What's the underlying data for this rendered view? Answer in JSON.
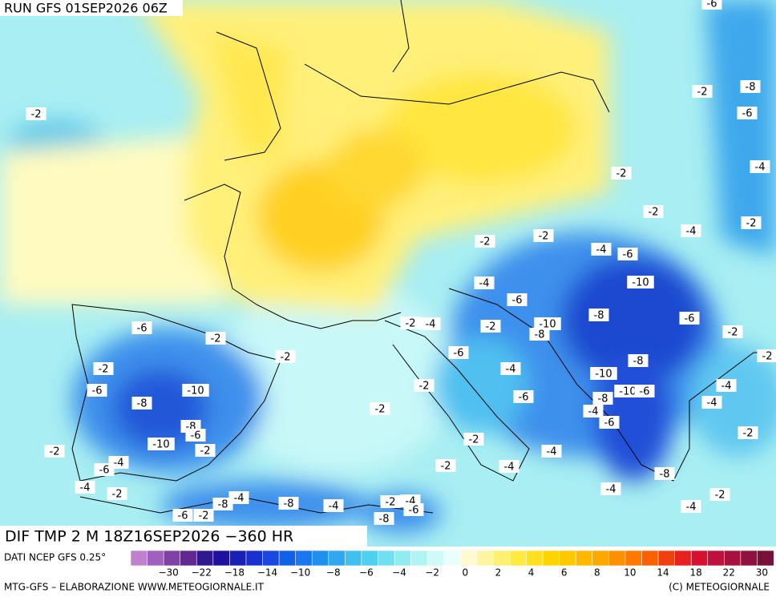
{
  "header": {
    "run": "RUN GFS 01SEP2026 06Z"
  },
  "map": {
    "labels": [
      "-2",
      "-2",
      "-8",
      "-6",
      "-4",
      "-2",
      "-2",
      "-2",
      "-4",
      "-2",
      "-2",
      "-4",
      "-6",
      "-10",
      "-4",
      "-6",
      "-6",
      "-2",
      "-2",
      "-4",
      "-2",
      "-10",
      "-8",
      "-8",
      "-6",
      "-2",
      "-2",
      "-6",
      "-2",
      "-2",
      "-4",
      "-10",
      "-8",
      "-6",
      "-10",
      "-2",
      "-4",
      "-6",
      "-8",
      "-10",
      "-6",
      "-8",
      "-4",
      "-2",
      "-4",
      "-6",
      "-8",
      "-6",
      "-2",
      "-10",
      "-2",
      "-2",
      "-2",
      "-4",
      "-4",
      "-6",
      "-2",
      "-4",
      "-8",
      "-4",
      "-2",
      "-4",
      "-4",
      "-8",
      "-8",
      "-4",
      "-2",
      "-4",
      "-6",
      "-6",
      "-2",
      "-2",
      "-4",
      "-8",
      "-6"
    ]
  },
  "footer": {
    "field": "DIF TMP 2 M 18Z16SEP2026 −360 HR",
    "source": "DATI NCEP GFS 0.25°",
    "credit": "MTG-GFS – ELABORAZIONE WWW.METEOGIORNALE.IT",
    "copyright": "(C) METEOGIORNALE"
  },
  "legend": {
    "colors": [
      "#c080d0",
      "#a060c0",
      "#8040a8",
      "#602890",
      "#301890",
      "#2010a0",
      "#1820b8",
      "#1830d0",
      "#1848e0",
      "#1060e8",
      "#1878f0",
      "#2090f0",
      "#30a8f0",
      "#40c0f0",
      "#50d0f0",
      "#70e0f0",
      "#90ecf0",
      "#b0f4f4",
      "#d0fafa",
      "#e8ffff",
      "#fffad0",
      "#fff5a0",
      "#fff070",
      "#ffea40",
      "#ffe020",
      "#ffd400",
      "#ffc800",
      "#ffb800",
      "#ffa800",
      "#ff9000",
      "#ff7800",
      "#f86000",
      "#f04010",
      "#e82020",
      "#d81030",
      "#c01040",
      "#a81040",
      "#901040",
      "#781038"
    ],
    "ticks": [
      "−30",
      "−22",
      "−18",
      "−14",
      "−10",
      "−8",
      "−6",
      "−4",
      "−2",
      "0",
      "2",
      "4",
      "6",
      "8",
      "10",
      "14",
      "18",
      "22",
      "30"
    ]
  }
}
